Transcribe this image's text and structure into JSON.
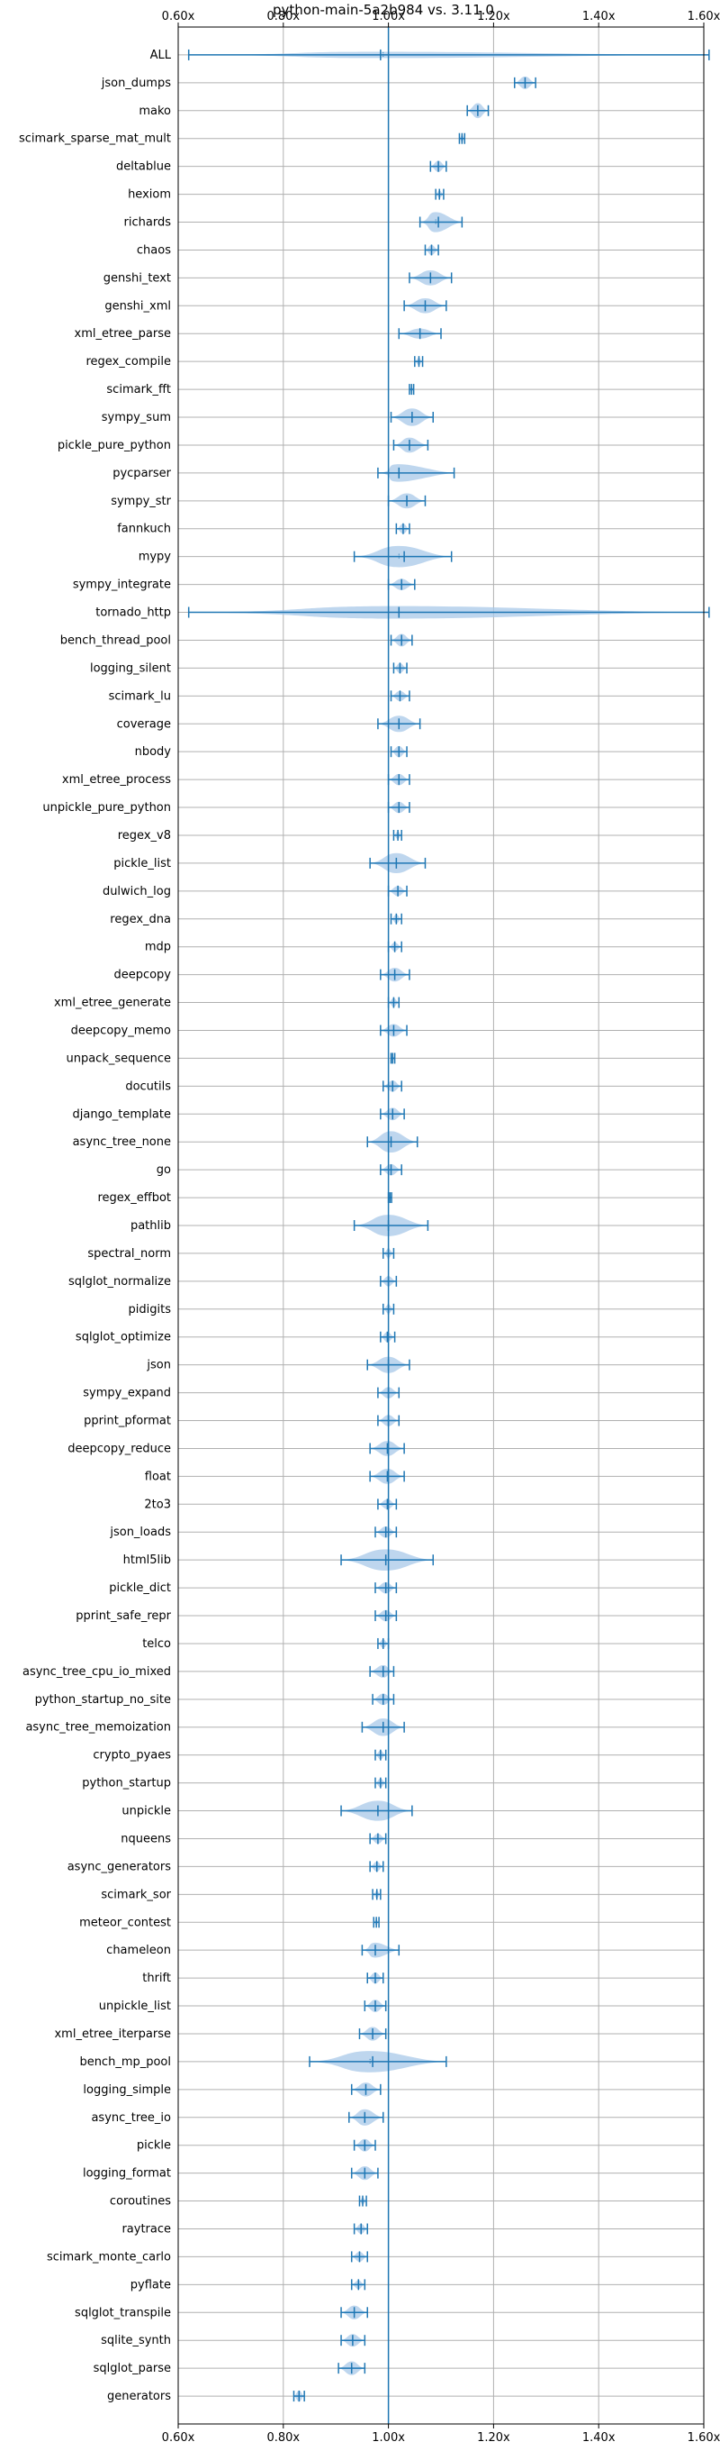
{
  "chart_data": {
    "type": "violin",
    "title": "python-main-5a2b984 vs. 3.11.0",
    "xlim": [
      0.6,
      1.6
    ],
    "xticks": [
      "0.60x",
      "0.80x",
      "1.00x",
      "1.20x",
      "1.40x",
      "1.60x"
    ],
    "xtick_values": [
      0.6,
      0.8,
      1.0,
      1.2,
      1.4,
      1.6
    ],
    "reference_line": 1.0,
    "grid": true,
    "colors": {
      "body": "#a8c8e8",
      "line": "#1f77b4",
      "grid": "#b0b0b0"
    },
    "series": [
      {
        "label": "ALL",
        "min": 0.62,
        "max": 1.61,
        "mean": 0.985,
        "median": 0.99,
        "width": 0.25
      },
      {
        "label": "json_dumps",
        "min": 1.24,
        "max": 1.28,
        "mean": 1.26,
        "median": 1.26,
        "width": 0.5
      },
      {
        "label": "mako",
        "min": 1.15,
        "max": 1.19,
        "mean": 1.17,
        "median": 1.17,
        "width": 0.6
      },
      {
        "label": "scimark_sparse_mat_mult",
        "min": 1.135,
        "max": 1.145,
        "mean": 1.14,
        "median": 1.14,
        "width": 0.3
      },
      {
        "label": "deltablue",
        "min": 1.08,
        "max": 1.11,
        "mean": 1.095,
        "median": 1.095,
        "width": 0.45
      },
      {
        "label": "hexiom",
        "min": 1.09,
        "max": 1.105,
        "mean": 1.097,
        "median": 1.097,
        "width": 0.3
      },
      {
        "label": "richards",
        "min": 1.06,
        "max": 1.14,
        "mean": 1.095,
        "median": 1.09,
        "width": 0.8
      },
      {
        "label": "chaos",
        "min": 1.07,
        "max": 1.095,
        "mean": 1.082,
        "median": 1.082,
        "width": 0.4
      },
      {
        "label": "genshi_text",
        "min": 1.04,
        "max": 1.12,
        "mean": 1.08,
        "median": 1.08,
        "width": 0.6
      },
      {
        "label": "genshi_xml",
        "min": 1.03,
        "max": 1.11,
        "mean": 1.07,
        "median": 1.07,
        "width": 0.6
      },
      {
        "label": "xml_etree_parse",
        "min": 1.02,
        "max": 1.1,
        "mean": 1.06,
        "median": 1.06,
        "width": 0.4
      },
      {
        "label": "regex_compile",
        "min": 1.05,
        "max": 1.065,
        "mean": 1.058,
        "median": 1.058,
        "width": 0.3
      },
      {
        "label": "scimark_fft",
        "min": 1.04,
        "max": 1.048,
        "mean": 1.044,
        "median": 1.044,
        "width": 0.2
      },
      {
        "label": "sympy_sum",
        "min": 1.005,
        "max": 1.085,
        "mean": 1.045,
        "median": 1.045,
        "width": 0.7
      },
      {
        "label": "pickle_pure_python",
        "min": 1.01,
        "max": 1.075,
        "mean": 1.04,
        "median": 1.04,
        "width": 0.6
      },
      {
        "label": "pycparser",
        "min": 0.98,
        "max": 1.125,
        "mean": 1.02,
        "median": 1.02,
        "width": 0.7
      },
      {
        "label": "sympy_str",
        "min": 1.0,
        "max": 1.07,
        "mean": 1.035,
        "median": 1.035,
        "width": 0.6
      },
      {
        "label": "fannkuch",
        "min": 1.015,
        "max": 1.04,
        "mean": 1.028,
        "median": 1.028,
        "width": 0.4
      },
      {
        "label": "mypy",
        "min": 0.935,
        "max": 1.12,
        "mean": 1.03,
        "median": 1.02,
        "width": 0.85
      },
      {
        "label": "sympy_integrate",
        "min": 1.0,
        "max": 1.05,
        "mean": 1.025,
        "median": 1.025,
        "width": 0.45
      },
      {
        "label": "tornado_http",
        "min": 0.62,
        "max": 1.61,
        "mean": 1.02,
        "median": 1.02,
        "width": 0.5
      },
      {
        "label": "bench_thread_pool",
        "min": 1.005,
        "max": 1.045,
        "mean": 1.025,
        "median": 1.025,
        "width": 0.5
      },
      {
        "label": "logging_silent",
        "min": 1.01,
        "max": 1.035,
        "mean": 1.022,
        "median": 1.022,
        "width": 0.4
      },
      {
        "label": "scimark_lu",
        "min": 1.005,
        "max": 1.04,
        "mean": 1.022,
        "median": 1.022,
        "width": 0.4
      },
      {
        "label": "coverage",
        "min": 0.98,
        "max": 1.06,
        "mean": 1.02,
        "median": 1.02,
        "width": 0.65
      },
      {
        "label": "nbody",
        "min": 1.005,
        "max": 1.035,
        "mean": 1.02,
        "median": 1.02,
        "width": 0.45
      },
      {
        "label": "xml_etree_process",
        "min": 1.0,
        "max": 1.04,
        "mean": 1.02,
        "median": 1.02,
        "width": 0.45
      },
      {
        "label": "unpickle_pure_python",
        "min": 1.0,
        "max": 1.04,
        "mean": 1.02,
        "median": 1.02,
        "width": 0.45
      },
      {
        "label": "regex_v8",
        "min": 1.01,
        "max": 1.025,
        "mean": 1.018,
        "median": 1.018,
        "width": 0.3
      },
      {
        "label": "pickle_list",
        "min": 0.965,
        "max": 1.07,
        "mean": 1.015,
        "median": 1.015,
        "width": 0.8
      },
      {
        "label": "dulwich_log",
        "min": 1.0,
        "max": 1.035,
        "mean": 1.018,
        "median": 1.018,
        "width": 0.4
      },
      {
        "label": "regex_dna",
        "min": 1.005,
        "max": 1.025,
        "mean": 1.015,
        "median": 1.015,
        "width": 0.35
      },
      {
        "label": "mdp",
        "min": 1.0,
        "max": 1.025,
        "mean": 1.012,
        "median": 1.012,
        "width": 0.35
      },
      {
        "label": "deepcopy",
        "min": 0.985,
        "max": 1.04,
        "mean": 1.012,
        "median": 1.012,
        "width": 0.55
      },
      {
        "label": "xml_etree_generate",
        "min": 1.0,
        "max": 1.02,
        "mean": 1.01,
        "median": 1.01,
        "width": 0.35
      },
      {
        "label": "deepcopy_memo",
        "min": 0.985,
        "max": 1.035,
        "mean": 1.01,
        "median": 1.01,
        "width": 0.5
      },
      {
        "label": "unpack_sequence",
        "min": 1.005,
        "max": 1.012,
        "mean": 1.008,
        "median": 1.008,
        "width": 0.2
      },
      {
        "label": "docutils",
        "min": 0.99,
        "max": 1.025,
        "mean": 1.008,
        "median": 1.008,
        "width": 0.45
      },
      {
        "label": "django_template",
        "min": 0.985,
        "max": 1.03,
        "mean": 1.008,
        "median": 1.008,
        "width": 0.5
      },
      {
        "label": "async_tree_none",
        "min": 0.96,
        "max": 1.055,
        "mean": 1.005,
        "median": 1.005,
        "width": 0.85
      },
      {
        "label": "go",
        "min": 0.985,
        "max": 1.025,
        "mean": 1.005,
        "median": 1.005,
        "width": 0.45
      },
      {
        "label": "regex_effbot",
        "min": 1.0,
        "max": 1.006,
        "mean": 1.003,
        "median": 1.003,
        "width": 0.15
      },
      {
        "label": "pathlib",
        "min": 0.935,
        "max": 1.075,
        "mean": 1.0,
        "median": 1.0,
        "width": 0.85
      },
      {
        "label": "spectral_norm",
        "min": 0.99,
        "max": 1.01,
        "mean": 1.0,
        "median": 1.0,
        "width": 0.35
      },
      {
        "label": "sqlglot_normalize",
        "min": 0.985,
        "max": 1.015,
        "mean": 1.0,
        "median": 1.0,
        "width": 0.4
      },
      {
        "label": "pidigits",
        "min": 0.99,
        "max": 1.01,
        "mean": 1.0,
        "median": 1.0,
        "width": 0.35
      },
      {
        "label": "sqlglot_optimize",
        "min": 0.985,
        "max": 1.012,
        "mean": 0.998,
        "median": 0.998,
        "width": 0.4
      },
      {
        "label": "json",
        "min": 0.96,
        "max": 1.04,
        "mean": 1.0,
        "median": 1.0,
        "width": 0.65
      },
      {
        "label": "sympy_expand",
        "min": 0.98,
        "max": 1.02,
        "mean": 1.0,
        "median": 1.0,
        "width": 0.45
      },
      {
        "label": "pprint_pformat",
        "min": 0.98,
        "max": 1.02,
        "mean": 1.0,
        "median": 1.0,
        "width": 0.45
      },
      {
        "label": "deepcopy_reduce",
        "min": 0.965,
        "max": 1.03,
        "mean": 0.998,
        "median": 0.998,
        "width": 0.6
      },
      {
        "label": "float",
        "min": 0.965,
        "max": 1.03,
        "mean": 0.998,
        "median": 0.998,
        "width": 0.6
      },
      {
        "label": "2to3",
        "min": 0.98,
        "max": 1.015,
        "mean": 0.998,
        "median": 0.998,
        "width": 0.4
      },
      {
        "label": "json_loads",
        "min": 0.975,
        "max": 1.015,
        "mean": 0.995,
        "median": 0.995,
        "width": 0.45
      },
      {
        "label": "html5lib",
        "min": 0.91,
        "max": 1.085,
        "mean": 0.995,
        "median": 0.995,
        "width": 0.85
      },
      {
        "label": "pickle_dict",
        "min": 0.975,
        "max": 1.015,
        "mean": 0.995,
        "median": 0.995,
        "width": 0.45
      },
      {
        "label": "pprint_safe_repr",
        "min": 0.975,
        "max": 1.015,
        "mean": 0.995,
        "median": 0.995,
        "width": 0.45
      },
      {
        "label": "telco",
        "min": 0.98,
        "max": 1.0,
        "mean": 0.99,
        "median": 0.99,
        "width": 0.35
      },
      {
        "label": "async_tree_cpu_io_mixed",
        "min": 0.965,
        "max": 1.01,
        "mean": 0.99,
        "median": 0.99,
        "width": 0.5
      },
      {
        "label": "python_startup_no_site",
        "min": 0.97,
        "max": 1.01,
        "mean": 0.99,
        "median": 0.99,
        "width": 0.45
      },
      {
        "label": "async_tree_memoization",
        "min": 0.95,
        "max": 1.03,
        "mean": 0.99,
        "median": 0.99,
        "width": 0.7
      },
      {
        "label": "crypto_pyaes",
        "min": 0.975,
        "max": 0.995,
        "mean": 0.985,
        "median": 0.985,
        "width": 0.35
      },
      {
        "label": "python_startup",
        "min": 0.975,
        "max": 0.995,
        "mean": 0.985,
        "median": 0.985,
        "width": 0.35
      },
      {
        "label": "unpickle",
        "min": 0.91,
        "max": 1.045,
        "mean": 0.98,
        "median": 0.98,
        "width": 0.8
      },
      {
        "label": "nqueens",
        "min": 0.965,
        "max": 0.995,
        "mean": 0.98,
        "median": 0.98,
        "width": 0.4
      },
      {
        "label": "async_generators",
        "min": 0.965,
        "max": 0.99,
        "mean": 0.978,
        "median": 0.978,
        "width": 0.4
      },
      {
        "label": "scimark_sor",
        "min": 0.97,
        "max": 0.985,
        "mean": 0.978,
        "median": 0.978,
        "width": 0.3
      },
      {
        "label": "meteor_contest",
        "min": 0.972,
        "max": 0.982,
        "mean": 0.977,
        "median": 0.977,
        "width": 0.25
      },
      {
        "label": "chameleon",
        "min": 0.95,
        "max": 1.02,
        "mean": 0.975,
        "median": 0.975,
        "width": 0.6
      },
      {
        "label": "thrift",
        "min": 0.96,
        "max": 0.99,
        "mean": 0.975,
        "median": 0.975,
        "width": 0.45
      },
      {
        "label": "unpickle_list",
        "min": 0.955,
        "max": 0.995,
        "mean": 0.975,
        "median": 0.975,
        "width": 0.5
      },
      {
        "label": "xml_etree_iterparse",
        "min": 0.945,
        "max": 0.995,
        "mean": 0.97,
        "median": 0.97,
        "width": 0.55
      },
      {
        "label": "bench_mp_pool",
        "min": 0.85,
        "max": 1.11,
        "mean": 0.97,
        "median": 0.965,
        "width": 0.85
      },
      {
        "label": "logging_simple",
        "min": 0.93,
        "max": 0.985,
        "mean": 0.957,
        "median": 0.957,
        "width": 0.55
      },
      {
        "label": "async_tree_io",
        "min": 0.925,
        "max": 0.99,
        "mean": 0.955,
        "median": 0.955,
        "width": 0.65
      },
      {
        "label": "pickle",
        "min": 0.935,
        "max": 0.975,
        "mean": 0.955,
        "median": 0.955,
        "width": 0.5
      },
      {
        "label": "logging_format",
        "min": 0.93,
        "max": 0.98,
        "mean": 0.955,
        "median": 0.955,
        "width": 0.55
      },
      {
        "label": "coroutines",
        "min": 0.945,
        "max": 0.958,
        "mean": 0.951,
        "median": 0.951,
        "width": 0.3
      },
      {
        "label": "raytrace",
        "min": 0.935,
        "max": 0.96,
        "mean": 0.948,
        "median": 0.948,
        "width": 0.4
      },
      {
        "label": "scimark_monte_carlo",
        "min": 0.93,
        "max": 0.96,
        "mean": 0.945,
        "median": 0.945,
        "width": 0.4
      },
      {
        "label": "pyflate",
        "min": 0.93,
        "max": 0.955,
        "mean": 0.943,
        "median": 0.943,
        "width": 0.35
      },
      {
        "label": "sqlglot_transpile",
        "min": 0.91,
        "max": 0.96,
        "mean": 0.935,
        "median": 0.935,
        "width": 0.55
      },
      {
        "label": "sqlite_synth",
        "min": 0.91,
        "max": 0.955,
        "mean": 0.932,
        "median": 0.932,
        "width": 0.5
      },
      {
        "label": "sqlglot_parse",
        "min": 0.905,
        "max": 0.955,
        "mean": 0.93,
        "median": 0.93,
        "width": 0.55
      },
      {
        "label": "generators",
        "min": 0.82,
        "max": 0.84,
        "mean": 0.83,
        "median": 0.83,
        "width": 0.45
      }
    ]
  }
}
